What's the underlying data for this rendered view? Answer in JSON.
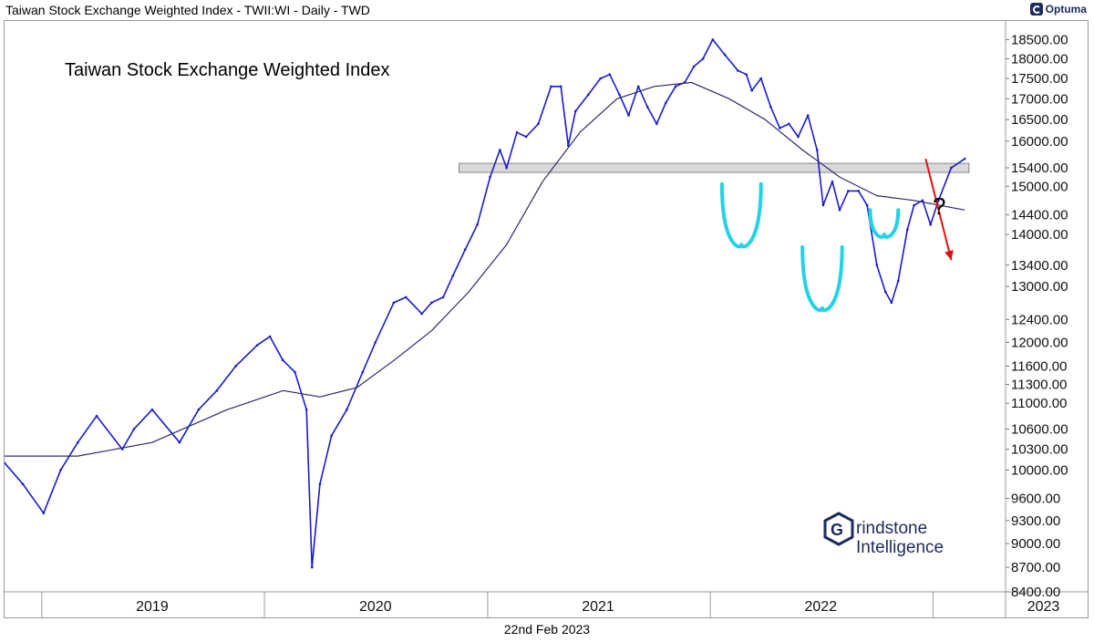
{
  "header": {
    "title": "Taiwan Stock Exchange Weighted Index - TWII:WI - Daily - TWD",
    "brand": "Optuma"
  },
  "footer": {
    "date": "22nd Feb 2023"
  },
  "watermark": {
    "line1": "rindstone",
    "line2": "Intelligence",
    "logo_letter": "G"
  },
  "annotation": {
    "question_mark": "?"
  },
  "colors": {
    "price": "#1a1acd",
    "moving_average": "#2b2b6b",
    "pattern": "#22d3e6",
    "arrow": "#e01010",
    "band": "#d9d9d9"
  },
  "chart_data": {
    "type": "line",
    "title": "Taiwan Stock Exchange Weighted Index",
    "xlabel": "",
    "ylabel": "",
    "y_scale": "log",
    "ylim": [
      8400,
      18900
    ],
    "xlim": [
      "2018-11-01",
      "2023-04-30"
    ],
    "x_ticks": [
      "2019",
      "2020",
      "2021",
      "2022",
      "2023"
    ],
    "y_ticks": [
      "18500.00",
      "18000.00",
      "17500.00",
      "17000.00",
      "16500.00",
      "16000.00",
      "15400.00",
      "15000.00",
      "14400.00",
      "14000.00",
      "13400.00",
      "13000.00",
      "12400.00",
      "12000.00",
      "11600.00",
      "11300.00",
      "11000.00",
      "10600.00",
      "10300.00",
      "10000.00",
      "9600.00",
      "9300.00",
      "9000.00",
      "8700.00",
      "8400.00"
    ],
    "grid": false,
    "legend": "none",
    "series": [
      {
        "style": "price",
        "x": [
          "2018-11-01",
          "2018-12-01",
          "2019-01-04",
          "2019-02-01",
          "2019-03-01",
          "2019-04-01",
          "2019-05-13",
          "2019-06-01",
          "2019-07-01",
          "2019-08-15",
          "2019-09-15",
          "2019-10-15",
          "2019-11-15",
          "2019-12-20",
          "2020-01-10",
          "2020-01-31",
          "2020-02-20",
          "2020-03-10",
          "2020-03-19",
          "2020-04-01",
          "2020-04-20",
          "2020-05-15",
          "2020-06-10",
          "2020-07-01",
          "2020-07-31",
          "2020-08-20",
          "2020-09-15",
          "2020-10-01",
          "2020-10-20",
          "2020-11-05",
          "2020-11-25",
          "2020-12-15",
          "2021-01-05",
          "2021-01-21",
          "2021-02-01",
          "2021-02-18",
          "2021-03-05",
          "2021-03-25",
          "2021-04-15",
          "2021-05-01",
          "2021-05-13",
          "2021-05-25",
          "2021-06-15",
          "2021-07-05",
          "2021-07-20",
          "2021-08-05",
          "2021-08-20",
          "2021-09-05",
          "2021-09-20",
          "2021-10-05",
          "2021-10-20",
          "2021-11-05",
          "2021-11-20",
          "2021-12-05",
          "2021-12-20",
          "2022-01-05",
          "2022-01-25",
          "2022-02-15",
          "2022-03-01",
          "2022-03-10",
          "2022-03-25",
          "2022-04-10",
          "2022-04-25",
          "2022-05-10",
          "2022-05-25",
          "2022-06-10",
          "2022-06-25",
          "2022-07-05",
          "2022-07-20",
          "2022-08-01",
          "2022-08-15",
          "2022-09-01",
          "2022-09-15",
          "2022-10-01",
          "2022-10-15",
          "2022-10-25",
          "2022-11-05",
          "2022-11-20",
          "2022-12-01",
          "2022-12-15",
          "2022-12-28",
          "2023-01-10",
          "2023-01-31",
          "2023-02-22"
        ],
        "values": [
          10100,
          9800,
          9400,
          10000,
          10400,
          10800,
          10300,
          10600,
          10900,
          10400,
          10900,
          11200,
          11600,
          11950,
          12100,
          11700,
          11500,
          10900,
          8700,
          9800,
          10500,
          10900,
          11500,
          12000,
          12700,
          12800,
          12500,
          12700,
          12800,
          13200,
          13700,
          14200,
          15200,
          15800,
          15400,
          16200,
          16100,
          16400,
          17300,
          17300,
          15900,
          16700,
          17100,
          17500,
          17600,
          17100,
          16600,
          17300,
          16800,
          16400,
          16900,
          17300,
          17400,
          17800,
          18000,
          18500,
          18100,
          17700,
          17600,
          17200,
          17500,
          16800,
          16300,
          16400,
          16100,
          16600,
          15800,
          14600,
          15100,
          14500,
          14900,
          14900,
          14600,
          13400,
          12900,
          12700,
          13100,
          14100,
          14600,
          14700,
          14200,
          14700,
          15400,
          15600
        ]
      },
      {
        "style": "moving_average",
        "x": [
          "2018-11-01",
          "2019-03-01",
          "2019-07-01",
          "2019-11-01",
          "2020-02-01",
          "2020-04-01",
          "2020-06-01",
          "2020-08-01",
          "2020-10-01",
          "2020-12-01",
          "2021-02-01",
          "2021-04-01",
          "2021-06-01",
          "2021-08-01",
          "2021-10-01",
          "2021-12-01",
          "2022-02-01",
          "2022-04-01",
          "2022-06-01",
          "2022-08-01",
          "2022-10-01",
          "2022-12-01",
          "2023-02-22"
        ],
        "values": [
          10200,
          10200,
          10400,
          10900,
          11200,
          11100,
          11250,
          11700,
          12200,
          12900,
          13800,
          15100,
          16200,
          17000,
          17300,
          17400,
          17000,
          16500,
          15800,
          15200,
          14800,
          14700,
          14500
        ]
      }
    ],
    "annotations": {
      "resistance_band": {
        "y_from": 15300,
        "y_to": 15500,
        "x_from": "2020-11-15",
        "x_to": "2023-03-01"
      },
      "inverse_head_and_shoulders": [
        {
          "part": "left-shoulder",
          "x_from": "2022-01-20",
          "x_to": "2022-03-25",
          "y_top": 15050,
          "y_bottom": 13800
        },
        {
          "part": "head",
          "x_from": "2022-06-01",
          "x_to": "2022-08-05",
          "y_top": 13750,
          "y_bottom": 12600
        },
        {
          "part": "right-shoulder",
          "x_from": "2022-09-20",
          "x_to": "2022-11-05",
          "y_top": 14500,
          "y_bottom": 14000
        }
      ],
      "arrow": {
        "x_from": "2022-12-20",
        "y_from": 15600,
        "x_to": "2023-01-31",
        "y_to": 13500
      }
    }
  }
}
